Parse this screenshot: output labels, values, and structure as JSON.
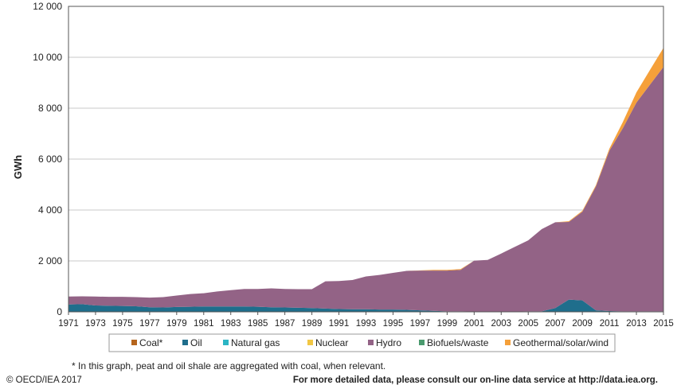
{
  "chart_data": {
    "type": "area",
    "stacked": true,
    "ylabel": "GWh",
    "ylim": [
      0,
      12000
    ],
    "y_ticks": [
      0,
      2000,
      4000,
      6000,
      8000,
      10000,
      12000
    ],
    "y_tick_labels": [
      "0",
      "2 000",
      "4 000",
      "6 000",
      "8 000",
      "10 000",
      "12 000"
    ],
    "x": [
      1971,
      1972,
      1973,
      1974,
      1975,
      1976,
      1977,
      1978,
      1979,
      1980,
      1981,
      1982,
      1983,
      1984,
      1985,
      1986,
      1987,
      1988,
      1989,
      1990,
      1991,
      1992,
      1993,
      1994,
      1995,
      1996,
      1997,
      1998,
      1999,
      2000,
      2001,
      2002,
      2003,
      2004,
      2005,
      2006,
      2007,
      2008,
      2009,
      2010,
      2011,
      2012,
      2013,
      2014,
      2015
    ],
    "x_tick_labels": [
      "1971",
      "1973",
      "1975",
      "1977",
      "1979",
      "1981",
      "1983",
      "1985",
      "1987",
      "1989",
      "1991",
      "1993",
      "1995",
      "1997",
      "1999",
      "2001",
      "2003",
      "2005",
      "2007",
      "2009",
      "2011",
      "2013",
      "2015"
    ],
    "grid": "horizontal",
    "legend_position": "bottom",
    "series": [
      {
        "name": "Coal*",
        "color": "#b5651d",
        "values": [
          0,
          0,
          0,
          0,
          0,
          0,
          0,
          0,
          0,
          0,
          0,
          0,
          0,
          0,
          0,
          0,
          0,
          0,
          0,
          0,
          0,
          0,
          0,
          0,
          0,
          0,
          0,
          0,
          0,
          0,
          0,
          0,
          0,
          0,
          0,
          0,
          0,
          0,
          0,
          0,
          0,
          0,
          0,
          0,
          0
        ]
      },
      {
        "name": "Oil",
        "color": "#1f6e8c",
        "values": [
          290,
          300,
          250,
          240,
          230,
          220,
          180,
          170,
          190,
          200,
          210,
          210,
          210,
          210,
          200,
          180,
          170,
          160,
          150,
          130,
          110,
          100,
          100,
          90,
          90,
          80,
          60,
          40,
          20,
          20,
          10,
          10,
          10,
          10,
          20,
          20,
          150,
          480,
          450,
          60,
          30,
          20,
          20,
          20,
          20
        ]
      },
      {
        "name": "Natural gas",
        "color": "#2bb5c4",
        "values": [
          0,
          0,
          0,
          0,
          0,
          0,
          0,
          0,
          0,
          0,
          0,
          0,
          0,
          0,
          0,
          0,
          0,
          0,
          0,
          0,
          0,
          0,
          0,
          0,
          0,
          0,
          0,
          0,
          0,
          0,
          0,
          0,
          0,
          0,
          0,
          0,
          0,
          0,
          0,
          0,
          0,
          0,
          0,
          0,
          0
        ]
      },
      {
        "name": "Nuclear",
        "color": "#f2c744",
        "values": [
          0,
          0,
          0,
          0,
          0,
          0,
          0,
          0,
          0,
          0,
          0,
          0,
          0,
          0,
          0,
          0,
          0,
          0,
          0,
          0,
          0,
          0,
          0,
          0,
          0,
          0,
          0,
          0,
          0,
          0,
          0,
          0,
          0,
          0,
          0,
          0,
          0,
          0,
          0,
          0,
          0,
          0,
          0,
          0,
          0
        ]
      },
      {
        "name": "Hydro",
        "color": "#936386",
        "values": [
          310,
          310,
          350,
          350,
          360,
          360,
          380,
          410,
          450,
          500,
          520,
          590,
          640,
          690,
          700,
          740,
          730,
          730,
          740,
          1070,
          1100,
          1150,
          1290,
          1360,
          1440,
          1530,
          1560,
          1580,
          1600,
          1630,
          2000,
          2030,
          2280,
          2540,
          2790,
          3230,
          3370,
          3050,
          3480,
          4860,
          6300,
          7200,
          8200,
          8900,
          9600
        ]
      },
      {
        "name": "Biofuels/waste",
        "color": "#4a9a6e",
        "values": [
          0,
          0,
          0,
          0,
          0,
          0,
          0,
          0,
          0,
          0,
          0,
          0,
          0,
          0,
          0,
          0,
          0,
          0,
          0,
          0,
          0,
          0,
          0,
          0,
          0,
          0,
          0,
          0,
          0,
          0,
          0,
          0,
          0,
          0,
          0,
          0,
          0,
          0,
          0,
          0,
          0,
          0,
          0,
          0,
          0
        ]
      },
      {
        "name": "Geothermal/solar/wind",
        "color": "#f5a03a",
        "values": [
          0,
          0,
          0,
          0,
          0,
          0,
          0,
          0,
          0,
          0,
          0,
          0,
          0,
          0,
          0,
          0,
          0,
          0,
          0,
          0,
          0,
          0,
          0,
          0,
          0,
          0,
          10,
          30,
          30,
          30,
          0,
          0,
          0,
          0,
          0,
          0,
          0,
          30,
          40,
          50,
          80,
          240,
          400,
          580,
          750
        ]
      }
    ]
  },
  "footer": {
    "footnote": "* In this graph, peat and oil shale are aggregated with coal, when relevant.",
    "copyright": "© OECD/IEA 2017",
    "more_data": "For more detailed data, please consult our on-line data service at http://data.iea.org."
  }
}
